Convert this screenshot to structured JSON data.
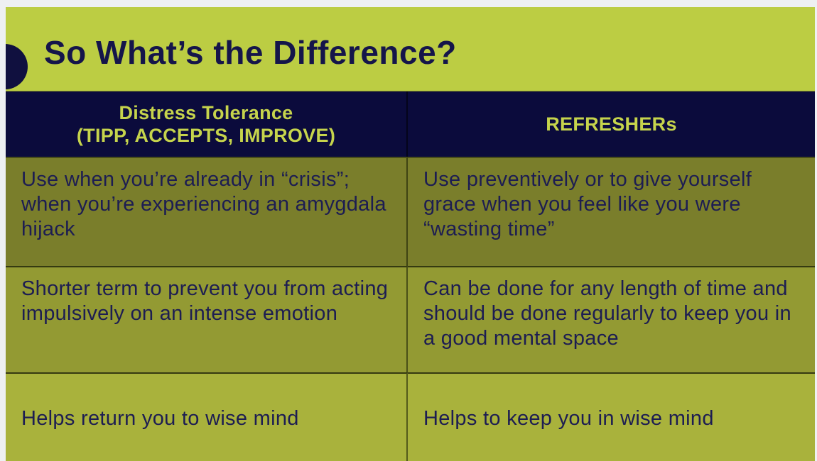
{
  "slide": {
    "title": "So What’s the Difference?"
  },
  "table": {
    "headers": [
      {
        "line1": "Distress Tolerance",
        "line2": "(TIPP, ACCEPTS, IMPROVE)"
      },
      {
        "line1": "REFRESHERs"
      }
    ],
    "rows": [
      {
        "left": "Use when you’re already in “crisis”; when you’re experiencing an amygdala hijack",
        "right": "Use preventively or to give yourself grace when you feel like you were “wasting time”"
      },
      {
        "left": "Shorter term to prevent you from acting impulsively on an intense emotion",
        "right": "Can be done for any length of time and should be done regularly to keep you in a good mental space"
      },
      {
        "left": "Helps return you to wise mind",
        "right": "Helps to keep you in wise mind"
      }
    ]
  },
  "colors": {
    "slide_background": "#bccd43",
    "header_background": "#0b0b3c",
    "header_text": "#c6d44c",
    "title_text": "#15154a",
    "body_text": "#1d1d52",
    "row1_background": "#7a7e2b",
    "row2_background": "#939a33",
    "row3_background": "#a9b23c",
    "frame": "#eef0f2"
  }
}
